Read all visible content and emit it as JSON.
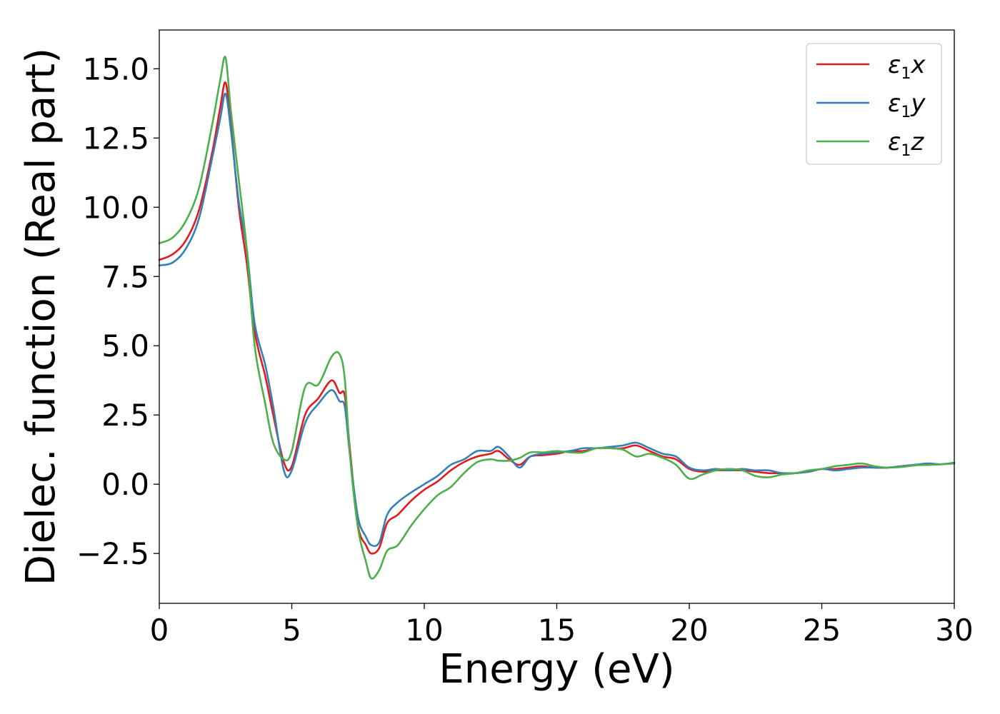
{
  "chart_data": {
    "type": "line",
    "xlabel": "Energy (eV)",
    "ylabel": "Dielec. function (Real part)",
    "xlim": [
      0,
      30
    ],
    "ylim": [
      -4.3,
      16.4
    ],
    "xticks": [
      0,
      5,
      10,
      15,
      20,
      25,
      30
    ],
    "xtick_labels": [
      "0",
      "5",
      "10",
      "15",
      "20",
      "25",
      "30"
    ],
    "yticks": [
      -2.5,
      0.0,
      2.5,
      5.0,
      7.5,
      10.0,
      12.5,
      15.0
    ],
    "ytick_labels": [
      "−2.5",
      "0.0",
      "2.5",
      "5.0",
      "7.5",
      "10.0",
      "12.5",
      "15.0"
    ],
    "grid": false,
    "legend_position": "top-right",
    "series": [
      {
        "name": "ε1x",
        "legend_base": "ε",
        "legend_sub": "1",
        "legend_var": "x",
        "color": "#e41a1c",
        "x": [
          0,
          0.5,
          1.0,
          1.5,
          2.0,
          2.3,
          2.5,
          2.7,
          3.0,
          3.3,
          3.6,
          4.0,
          4.3,
          4.7,
          5.0,
          5.5,
          6.0,
          6.5,
          6.8,
          7.0,
          7.2,
          7.5,
          7.8,
          8.0,
          8.3,
          8.6,
          9.0,
          9.5,
          10.0,
          10.5,
          11.0,
          11.5,
          12.0,
          12.5,
          12.8,
          13.2,
          13.6,
          14.0,
          14.5,
          15.0,
          15.5,
          16.0,
          16.5,
          17.0,
          17.5,
          18.0,
          18.5,
          19.0,
          19.5,
          20.0,
          20.5,
          21.0,
          21.5,
          22.0,
          22.5,
          23.0,
          23.5,
          24.0,
          24.5,
          25.0,
          25.5,
          26.0,
          26.5,
          27.0,
          27.5,
          28.0,
          28.5,
          29.0,
          29.5,
          30.0
        ],
        "y": [
          8.1,
          8.3,
          8.8,
          9.9,
          12.0,
          13.6,
          14.5,
          13.0,
          10.0,
          8.0,
          5.5,
          3.9,
          2.5,
          0.8,
          0.65,
          2.5,
          3.1,
          3.75,
          3.3,
          3.2,
          1.2,
          -1.5,
          -2.2,
          -2.5,
          -2.3,
          -1.4,
          -1.1,
          -0.6,
          -0.2,
          0.1,
          0.5,
          0.8,
          1.0,
          1.1,
          1.2,
          0.9,
          0.7,
          1.0,
          1.05,
          1.1,
          1.2,
          1.2,
          1.3,
          1.3,
          1.3,
          1.4,
          1.2,
          1.0,
          0.9,
          0.55,
          0.45,
          0.5,
          0.5,
          0.5,
          0.45,
          0.4,
          0.4,
          0.4,
          0.45,
          0.55,
          0.55,
          0.6,
          0.65,
          0.6,
          0.6,
          0.65,
          0.7,
          0.7,
          0.72,
          0.75
        ]
      },
      {
        "name": "ε1y",
        "legend_base": "ε",
        "legend_sub": "1",
        "legend_var": "y",
        "color": "#377eb8",
        "x": [
          0,
          0.5,
          1.0,
          1.5,
          2.0,
          2.3,
          2.5,
          2.7,
          3.0,
          3.3,
          3.6,
          4.0,
          4.3,
          4.7,
          5.0,
          5.5,
          6.0,
          6.5,
          6.8,
          7.0,
          7.2,
          7.5,
          7.8,
          8.0,
          8.3,
          8.6,
          9.0,
          9.5,
          10.0,
          10.5,
          11.0,
          11.5,
          12.0,
          12.5,
          12.8,
          13.2,
          13.6,
          14.0,
          14.5,
          15.0,
          15.5,
          16.0,
          16.5,
          17.0,
          17.5,
          18.0,
          18.5,
          19.0,
          19.5,
          20.0,
          20.5,
          21.0,
          21.5,
          22.0,
          22.5,
          23.0,
          23.5,
          24.0,
          24.5,
          25.0,
          25.5,
          26.0,
          26.5,
          27.0,
          27.5,
          28.0,
          28.5,
          29.0,
          29.5,
          30.0
        ],
        "y": [
          7.9,
          8.0,
          8.5,
          9.6,
          11.8,
          13.2,
          14.1,
          12.8,
          10.2,
          8.5,
          5.8,
          4.3,
          2.8,
          0.5,
          0.5,
          2.2,
          2.9,
          3.4,
          3.0,
          2.8,
          1.0,
          -1.2,
          -1.9,
          -2.2,
          -2.1,
          -1.1,
          -0.65,
          -0.3,
          0.0,
          0.3,
          0.7,
          0.9,
          1.2,
          1.2,
          1.35,
          1.0,
          0.6,
          1.0,
          1.1,
          1.15,
          1.2,
          1.3,
          1.3,
          1.35,
          1.4,
          1.5,
          1.3,
          1.1,
          1.0,
          0.6,
          0.5,
          0.55,
          0.5,
          0.55,
          0.5,
          0.5,
          0.4,
          0.4,
          0.45,
          0.55,
          0.5,
          0.55,
          0.6,
          0.6,
          0.6,
          0.65,
          0.7,
          0.75,
          0.72,
          0.78
        ]
      },
      {
        "name": "ε1z",
        "legend_base": "ε",
        "legend_sub": "1",
        "legend_var": "z",
        "color": "#4daf4a",
        "x": [
          0,
          0.5,
          1.0,
          1.5,
          2.0,
          2.3,
          2.5,
          2.7,
          3.0,
          3.3,
          3.6,
          4.0,
          4.3,
          4.7,
          5.0,
          5.5,
          6.0,
          6.5,
          6.8,
          7.0,
          7.2,
          7.5,
          7.8,
          8.0,
          8.3,
          8.6,
          9.0,
          9.5,
          10.0,
          10.5,
          11.0,
          11.5,
          12.0,
          12.5,
          12.8,
          13.2,
          13.6,
          14.0,
          14.5,
          15.0,
          15.5,
          16.0,
          16.5,
          17.0,
          17.5,
          18.0,
          18.5,
          19.0,
          19.5,
          20.0,
          20.5,
          21.0,
          21.5,
          22.0,
          22.5,
          23.0,
          23.5,
          24.0,
          24.5,
          25.0,
          25.5,
          26.0,
          26.5,
          27.0,
          27.5,
          28.0,
          28.5,
          29.0,
          29.5,
          30.0
        ],
        "y": [
          8.7,
          8.9,
          9.5,
          10.7,
          13.0,
          14.6,
          15.4,
          13.5,
          11.0,
          8.5,
          5.0,
          2.9,
          1.5,
          0.9,
          1.2,
          3.5,
          3.6,
          4.6,
          4.7,
          3.8,
          1.0,
          -1.6,
          -2.8,
          -3.4,
          -3.1,
          -2.4,
          -2.2,
          -1.5,
          -0.9,
          -0.4,
          -0.1,
          0.4,
          0.8,
          0.9,
          0.85,
          0.85,
          0.95,
          1.15,
          1.15,
          1.2,
          1.15,
          1.15,
          1.3,
          1.3,
          1.25,
          1.0,
          1.1,
          0.95,
          0.7,
          0.2,
          0.35,
          0.5,
          0.55,
          0.5,
          0.3,
          0.25,
          0.35,
          0.4,
          0.5,
          0.55,
          0.65,
          0.7,
          0.75,
          0.65,
          0.6,
          0.62,
          0.68,
          0.7,
          0.72,
          0.75
        ]
      }
    ]
  }
}
